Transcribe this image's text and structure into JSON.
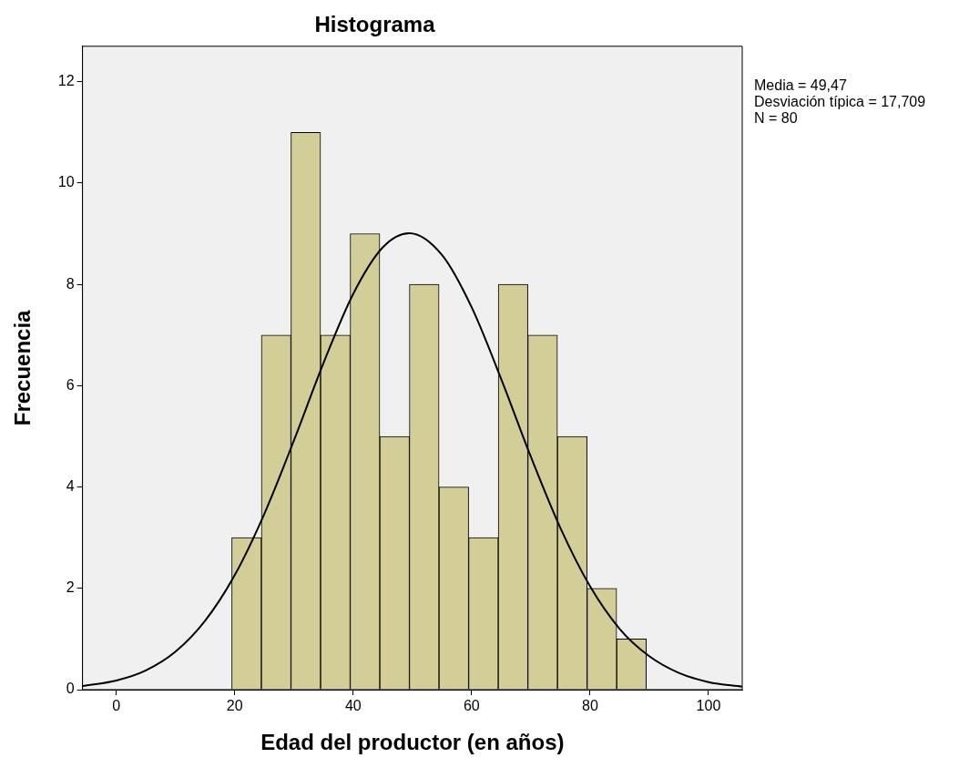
{
  "chart_data": {
    "type": "histogram",
    "title": "Histograma",
    "xlabel": "Edad del productor (en años)",
    "ylabel": "Frecuencia",
    "bins": [
      19.5,
      24.5,
      29.5,
      34.5,
      39.5,
      44.5,
      49.5,
      54.5,
      59.5,
      64.5,
      69.5,
      74.5,
      79.5,
      84.5,
      89.5
    ],
    "values": [
      3,
      7,
      11,
      7,
      9,
      5,
      8,
      4,
      3,
      8,
      7,
      5,
      2,
      1
    ],
    "color": "#d3ce97",
    "series": [
      {
        "type": "line",
        "color": "#000000",
        "x": [
          -5.7,
          0,
          5,
          10,
          15,
          20,
          25,
          30,
          35,
          40,
          45,
          49.47,
          55,
          60,
          65,
          70,
          75,
          80,
          85,
          90,
          95,
          100,
          105.7
        ],
        "values": [
          0.07,
          0.18,
          0.38,
          0.75,
          1.36,
          2.26,
          3.47,
          4.92,
          6.45,
          7.81,
          8.73,
          9.01,
          8.58,
          7.55,
          6.13,
          4.6,
          3.19,
          2.04,
          1.2,
          0.66,
          0.33,
          0.15,
          0.06
        ]
      }
    ],
    "xlim": [
      -5.7,
      105.7
    ],
    "xticks": [
      0,
      20,
      40,
      60,
      80,
      100
    ],
    "ylim": [
      0,
      12.7
    ],
    "yticks": [
      0,
      2,
      4,
      6,
      8,
      10,
      12
    ],
    "grid": false,
    "legend": false,
    "marker": "none",
    "annotations": [
      "Media = 49,47",
      "Desviación típica = 17,709",
      "N = 80"
    ]
  }
}
